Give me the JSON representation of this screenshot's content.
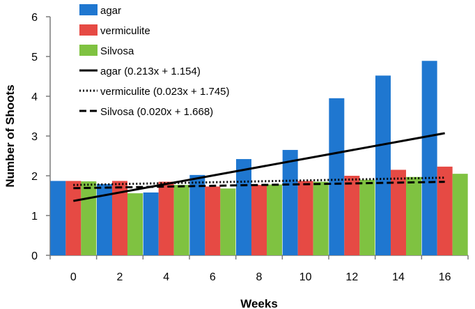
{
  "chart_data": {
    "type": "bar",
    "xlabel": "Weeks",
    "ylabel": "Number of Shoots",
    "ylim": [
      0,
      6
    ],
    "yticks": [
      0,
      1,
      2,
      3,
      4,
      5,
      6
    ],
    "grid": false,
    "legend_position": "top-left",
    "categories": [
      "0",
      "2",
      "4",
      "6",
      "8",
      "10",
      "12",
      "14",
      "16"
    ],
    "series": [
      {
        "name": "agar",
        "color": "#1f77d0",
        "values": [
          1.87,
          1.79,
          1.58,
          2.02,
          2.42,
          2.65,
          3.95,
          4.52,
          4.89
        ]
      },
      {
        "name": "vermiculite",
        "color": "#e64a44",
        "values": [
          1.87,
          1.87,
          1.85,
          1.73,
          1.77,
          1.87,
          2.0,
          2.15,
          2.23
        ]
      },
      {
        "name": "Silvosa",
        "color": "#7fc241",
        "values": [
          1.86,
          1.56,
          1.77,
          1.68,
          1.78,
          1.85,
          1.9,
          1.97,
          2.05
        ]
      }
    ],
    "trendlines": [
      {
        "name": "agar (0.213x + 1.154)",
        "series": "agar",
        "slope": 0.213,
        "intercept": 1.154,
        "style": "solid"
      },
      {
        "name": "vermiculite (0.023x + 1.745)",
        "series": "vermiculite",
        "slope": 0.023,
        "intercept": 1.745,
        "style": "dotted"
      },
      {
        "name": "Silvosa (0.020x + 1.668)",
        "series": "Silvosa",
        "slope": 0.02,
        "intercept": 1.668,
        "style": "dashed"
      }
    ]
  }
}
